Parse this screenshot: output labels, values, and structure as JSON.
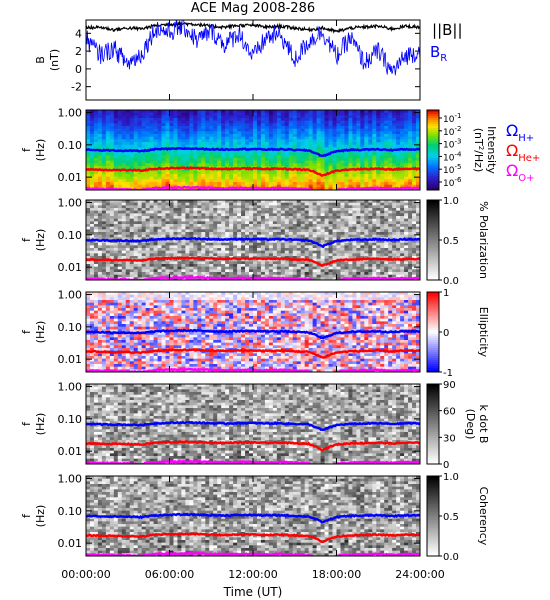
{
  "title": "ACE Mag 2008-286",
  "x_axis": {
    "label": "Time (UT)",
    "range_hours": [
      0,
      24
    ],
    "ticks": [
      "00:00:00",
      "06:00:00",
      "12:00:00",
      "18:00:00",
      "24:00:00"
    ]
  },
  "freq_ticks": [
    "1.00",
    "0.10",
    "0.01"
  ],
  "freq_ylabel": {
    "main": "f",
    "unit": "(Hz)"
  },
  "colors": {
    "b_total": "#000000",
    "b_r": "#0000ff",
    "h_plus": "#0000ff",
    "he_plus": "#ff0000",
    "o_plus": "#ff00ff"
  },
  "chart_data": [
    {
      "type": "line",
      "panel": "magnetic-field",
      "ylabel": "B",
      "yunit": "(nT)",
      "ylim": [
        -3.5,
        5.5
      ],
      "yticks": [
        "4",
        "2",
        "0",
        "-2"
      ],
      "x_hours": [
        0,
        1,
        2,
        3,
        4,
        5,
        6,
        7,
        8,
        9,
        10,
        11,
        12,
        13,
        14,
        15,
        16,
        17,
        18,
        19,
        20,
        21,
        22,
        23,
        24
      ],
      "series": [
        {
          "name": "|B|",
          "color": "#000000",
          "values": [
            4.6,
            4.7,
            4.4,
            4.6,
            4.5,
            4.9,
            5.0,
            5.1,
            5.0,
            4.8,
            4.7,
            4.9,
            4.9,
            4.7,
            4.8,
            4.6,
            4.4,
            4.6,
            4.2,
            4.6,
            4.7,
            4.8,
            4.5,
            4.8,
            4.7
          ]
        },
        {
          "name": "B",
          "subscript": "R",
          "color": "#0000ff",
          "values": [
            3.4,
            1.6,
            2.3,
            0.6,
            1.7,
            4.6,
            4.1,
            4.8,
            3.2,
            4.3,
            2.7,
            4.1,
            1.3,
            3.6,
            3.8,
            1.0,
            3.1,
            4.2,
            1.4,
            3.5,
            0.7,
            2.0,
            -0.4,
            1.5,
            2.0
          ]
        }
      ]
    },
    {
      "type": "heatmap",
      "panel": "intensity",
      "colorbar_label": "Intensity",
      "colorbar_unit_base": "(nT",
      "colorbar_unit_sup": "2",
      "colorbar_unit_tail": "/Hz)",
      "colorbar_ticks": [
        {
          "base": "10",
          "exp": "-1"
        },
        {
          "base": "10",
          "exp": "-2"
        },
        {
          "base": "10",
          "exp": "-3"
        },
        {
          "base": "10",
          "exp": "-4"
        },
        {
          "base": "10",
          "exp": "-5"
        },
        {
          "base": "10",
          "exp": "-6"
        }
      ]
    },
    {
      "type": "heatmap",
      "panel": "polarization",
      "colorbar_label": "% Polarization",
      "colorbar_ticks": [
        "1.0",
        "0.5",
        "0.0"
      ]
    },
    {
      "type": "heatmap",
      "panel": "ellipticity",
      "colorbar_label": "Ellipticity",
      "colorbar_ticks": [
        "1",
        "0",
        "-1"
      ]
    },
    {
      "type": "heatmap",
      "panel": "k-dot-b",
      "colorbar_label": "k dot B",
      "colorbar_unit": "(Deg)",
      "colorbar_ticks": [
        "90",
        "60",
        "30",
        "0"
      ]
    },
    {
      "type": "heatmap",
      "panel": "coherency",
      "colorbar_label": "Coherency",
      "colorbar_ticks": [
        "1.0",
        "0.5",
        "0.0"
      ]
    },
    {
      "type": "line",
      "panel": "gyrofrequency-overlays",
      "ylim_hz": [
        0.004,
        1.2
      ],
      "yscale": "log",
      "x_hours": [
        0,
        1,
        2,
        3,
        4,
        5,
        6,
        7,
        8,
        9,
        10,
        11,
        12,
        13,
        14,
        15,
        16,
        17,
        18,
        19,
        20,
        21,
        22,
        23,
        24
      ],
      "series": [
        {
          "name": "H+",
          "color": "#0000ff",
          "values": [
            0.07,
            0.068,
            0.067,
            0.066,
            0.064,
            0.073,
            0.075,
            0.077,
            0.076,
            0.073,
            0.072,
            0.074,
            0.074,
            0.072,
            0.073,
            0.07,
            0.067,
            0.044,
            0.064,
            0.07,
            0.071,
            0.073,
            0.069,
            0.073,
            0.072
          ]
        },
        {
          "name": "He+",
          "color": "#ff0000",
          "values": [
            0.0175,
            0.017,
            0.0167,
            0.0165,
            0.016,
            0.0183,
            0.0188,
            0.0193,
            0.019,
            0.0183,
            0.018,
            0.0185,
            0.0185,
            0.018,
            0.0183,
            0.0175,
            0.0168,
            0.011,
            0.016,
            0.0175,
            0.0178,
            0.0183,
            0.0173,
            0.0183,
            0.018
          ]
        },
        {
          "name": "O+",
          "color": "#ff00ff",
          "values": [
            0.0044,
            0.0043,
            0.0042,
            0.0041,
            0.004,
            0.0046,
            0.0047,
            0.0048,
            0.0048,
            0.0046,
            0.0045,
            0.0046,
            0.0046,
            0.0045,
            0.0046,
            0.0044,
            0.0042,
            0.003,
            0.004,
            0.0044,
            0.0045,
            0.0046,
            0.0043,
            0.0046,
            0.0045
          ]
        }
      ]
    }
  ],
  "legend": {
    "omega": "Ω",
    "items": [
      {
        "sub": "H+",
        "color": "#0000ff"
      },
      {
        "sub": "He+",
        "color": "#ff0000"
      },
      {
        "sub": "O+",
        "color": "#ff00ff"
      }
    ]
  }
}
